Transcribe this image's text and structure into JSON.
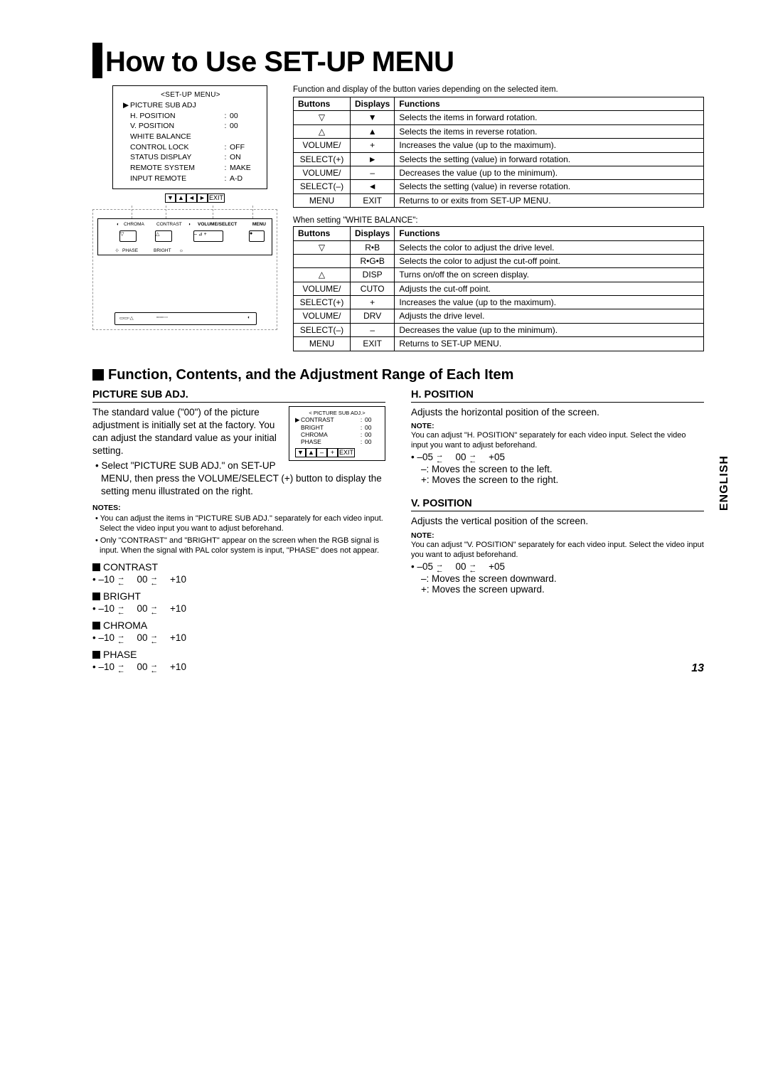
{
  "page_number": "13",
  "side_language": "ENGLISH",
  "title": "How to Use SET-UP MENU",
  "osd_main": {
    "title": "<SET-UP MENU>",
    "items": [
      {
        "label": "PICTURE SUB ADJ",
        "val": "",
        "pointer": true
      },
      {
        "label": "H. POSITION",
        "val": "00"
      },
      {
        "label": "V. POSITION",
        "val": "00"
      },
      {
        "label": "WHITE BALANCE",
        "val": ""
      },
      {
        "label": "CONTROL LOCK",
        "val": "OFF"
      },
      {
        "label": "STATUS DISPLAY",
        "val": "ON"
      },
      {
        "label": "REMOTE SYSTEM",
        "val": "MAKE"
      },
      {
        "label": "INPUT REMOTE",
        "val": "A-D"
      }
    ],
    "buttons": [
      "▼",
      "▲",
      "◄",
      "►",
      "EXIT"
    ]
  },
  "device_panel": {
    "top_labels": [
      "CHROMA",
      "CONTRAST",
      "VOLUME/SELECT",
      "MENU",
      "PHASE",
      "BRIGHT"
    ]
  },
  "func_caption": "Function and display of the button varies depending on the selected item.",
  "table1": {
    "headers": [
      "Buttons",
      "Displays",
      "Functions"
    ],
    "rows": [
      [
        "▽",
        "▼",
        "Selects the items in forward rotation."
      ],
      [
        "△",
        "▲",
        "Selects the items in reverse rotation."
      ],
      [
        "VOLUME/",
        "+",
        "Increases the value (up to the maximum)."
      ],
      [
        "SELECT(+)",
        "►",
        "Selects the setting (value) in forward rotation."
      ],
      [
        "VOLUME/",
        "–",
        "Decreases the value (up to the minimum)."
      ],
      [
        "SELECT(–)",
        "◄",
        "Selects the setting (value) in reverse rotation."
      ],
      [
        "MENU",
        "EXIT",
        "Returns to or exits from SET-UP MENU."
      ]
    ]
  },
  "wb_caption": "When setting \"WHITE BALANCE\":",
  "table2": {
    "headers": [
      "Buttons",
      "Displays",
      "Functions"
    ],
    "rows": [
      [
        "▽",
        "R•B",
        "Selects the color to adjust the drive level."
      ],
      [
        "",
        "R•G•B",
        "Selects the color to adjust the cut-off point."
      ],
      [
        "△",
        "DISP",
        "Turns on/off the on screen display."
      ],
      [
        "VOLUME/",
        "CUTO",
        "Adjusts the cut-off point."
      ],
      [
        "SELECT(+)",
        "+",
        "Increases the value (up to the maximum)."
      ],
      [
        "VOLUME/",
        "DRV",
        "Adjusts the drive level."
      ],
      [
        "SELECT(–)",
        "–",
        "Decreases the value (up to the minimum)."
      ],
      [
        "MENU",
        "EXIT",
        "Returns to SET-UP MENU."
      ]
    ]
  },
  "section_heading": "Function, Contents, and the Adjustment Range of Each Item",
  "picture_sub": {
    "heading": "PICTURE SUB ADJ.",
    "intro": "The standard value (\"00\") of the picture adjustment is initially set at the factory. You can adjust the standard value as your initial setting.",
    "bullet": "Select \"PICTURE SUB ADJ.\" on SET-UP MENU, then press the VOLUME/SELECT (+) button to display the setting menu illustrated on the right.",
    "notes_h": "NOTES:",
    "notes": [
      "You can adjust the items in \"PICTURE SUB ADJ.\" separately for each video input. Select the video input you want to adjust beforehand.",
      "Only \"CONTRAST\" and \"BRIGHT\" appear on the screen when the RGB signal is input. When the signal with PAL color system is input, \"PHASE\" does not appear."
    ],
    "mini_osd": {
      "title": "< PICTURE SUB ADJ.>",
      "items": [
        {
          "label": "CONTRAST",
          "val": "00",
          "pointer": true
        },
        {
          "label": "BRIGHT",
          "val": "00"
        },
        {
          "label": "CHROMA",
          "val": "00"
        },
        {
          "label": "PHASE",
          "val": "00"
        }
      ],
      "buttons": [
        "▼",
        "▲",
        "–",
        "+",
        "EXIT"
      ]
    },
    "adjustments": [
      {
        "name": "CONTRAST",
        "range_lo": "–10",
        "range_mid": "00",
        "range_hi": "+10"
      },
      {
        "name": "BRIGHT",
        "range_lo": "–10",
        "range_mid": "00",
        "range_hi": "+10"
      },
      {
        "name": "CHROMA",
        "range_lo": "–10",
        "range_mid": "00",
        "range_hi": "+10"
      },
      {
        "name": "PHASE",
        "range_lo": "–10",
        "range_mid": "00",
        "range_hi": "+10"
      }
    ]
  },
  "h_position": {
    "heading": "H. POSITION",
    "desc": "Adjusts the horizontal position of the screen.",
    "note_h": "NOTE:",
    "note": "You can adjust \"H. POSITION\" separately for each video input. Select the video input you want to adjust beforehand.",
    "range_lo": "–05",
    "range_mid": "00",
    "range_hi": "+05",
    "minus": "–: Moves the screen to the left.",
    "plus": "+: Moves the screen to the right."
  },
  "v_position": {
    "heading": "V. POSITION",
    "desc": "Adjusts the vertical position of the screen.",
    "note_h": "NOTE:",
    "note": "You can adjust \"V. POSITION\" separately for each video input. Select the video input you want to adjust beforehand.",
    "range_lo": "–05",
    "range_mid": "00",
    "range_hi": "+05",
    "minus": "–: Moves the screen downward.",
    "plus": "+: Moves the screen upward."
  },
  "colors": {
    "text": "#000000",
    "bg": "#ffffff",
    "dash": "#999999"
  }
}
